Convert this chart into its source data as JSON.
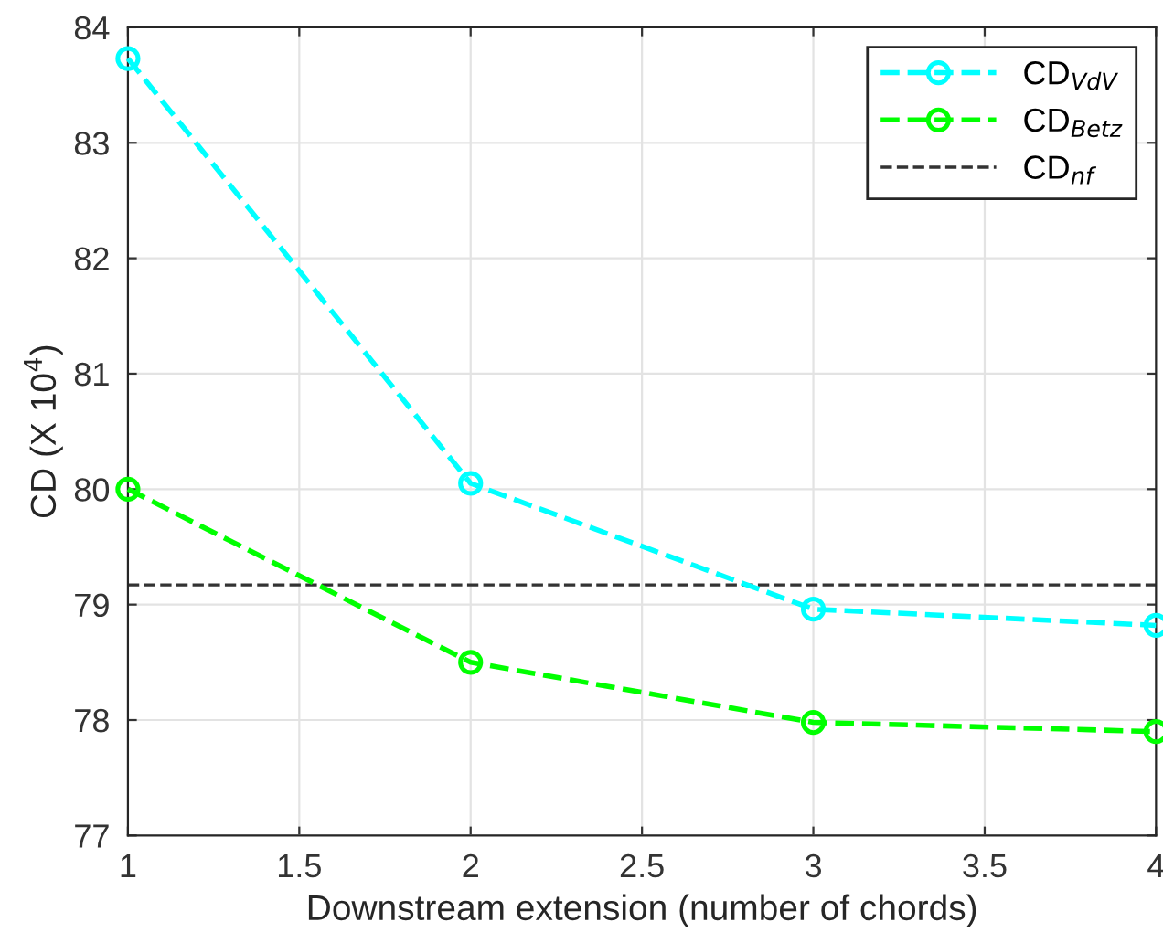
{
  "chart_data": {
    "type": "line",
    "xlabel": "Downstream extension (number of chords)",
    "ylabel": "CD (X 10$^{4}$)",
    "x": [
      1,
      2,
      3,
      4
    ],
    "series": [
      {
        "name": "CD$_{VdV}$",
        "color": "#00ffff",
        "values": [
          83.73,
          80.05,
          78.96,
          78.82
        ]
      },
      {
        "name": "CD$_{Betz}$",
        "color": "#00ff00",
        "values": [
          80.0,
          78.5,
          77.98,
          77.9
        ]
      }
    ],
    "ref_lines": [
      {
        "axis": "y",
        "value": 79.17,
        "label": "CD$_{nf}$",
        "color": "#333333",
        "line_style": "dashed"
      }
    ],
    "xlim": [
      1,
      4
    ],
    "xticks": [
      1,
      1.5,
      2,
      2.5,
      3,
      3.5,
      4
    ],
    "ylim": [
      77,
      84
    ],
    "yticks": [
      77,
      78,
      79,
      80,
      81,
      82,
      83,
      84
    ],
    "grid": true,
    "legend": "top right",
    "marker": "circle",
    "line_style": "dashed"
  }
}
